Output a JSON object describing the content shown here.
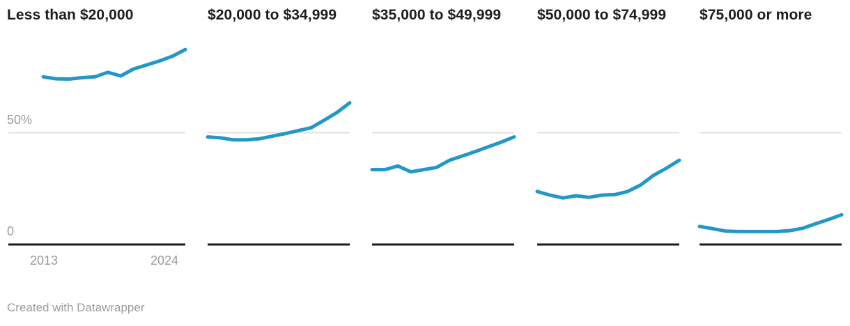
{
  "chart_data": {
    "type": "line",
    "title": "",
    "x": [
      2013,
      2014,
      2015,
      2016,
      2017,
      2018,
      2019,
      2020,
      2021,
      2022,
      2023,
      2024
    ],
    "x_axis": {
      "start_label": "2013",
      "end_label": "2024"
    },
    "y_axis": {
      "zero_label": "0",
      "fifty_label": "50%",
      "unit": "%",
      "gridlines": [
        50
      ]
    },
    "ylim": [
      0,
      95
    ],
    "legend_position": "none",
    "series_color": "#2397c9",
    "panels": [
      {
        "label": "Less than $20,000",
        "values": [
          75,
          74.1,
          74,
          74.6,
          75,
          77,
          75.4,
          78.5,
          80.3,
          82.1,
          84.2,
          87.2
        ]
      },
      {
        "label": "$20,000 to $34,999",
        "values": [
          48.1,
          47.7,
          46.8,
          46.8,
          47.3,
          48.4,
          49.6,
          50.9,
          52.2,
          55.5,
          59,
          63.4
        ]
      },
      {
        "label": "$35,000 to $49,999",
        "values": [
          33.5,
          33.5,
          35.1,
          32.5,
          33.5,
          34.5,
          37.7,
          39.6,
          41.6,
          43.7,
          45.8,
          48.1
        ]
      },
      {
        "label": "$50,000 to $74,999",
        "values": [
          23.7,
          22.1,
          20.8,
          21.8,
          21.1,
          22.1,
          22.3,
          23.7,
          26.6,
          30.9,
          34.1,
          37.7
        ]
      },
      {
        "label": "$75,000 or more",
        "values": [
          8.1,
          7.1,
          6,
          5.8,
          5.8,
          5.8,
          5.8,
          6.2,
          7.3,
          9.3,
          11.2,
          13.3
        ]
      }
    ]
  },
  "colors": {
    "line": "#2397c9",
    "gridline": "#e0e0e0",
    "axis": "#1a1a1a",
    "tick_text": "#9b9b9b",
    "title_text": "#1d1d1d",
    "background": "#ffffff"
  },
  "footer": {
    "credit": "Created with Datawrapper"
  }
}
